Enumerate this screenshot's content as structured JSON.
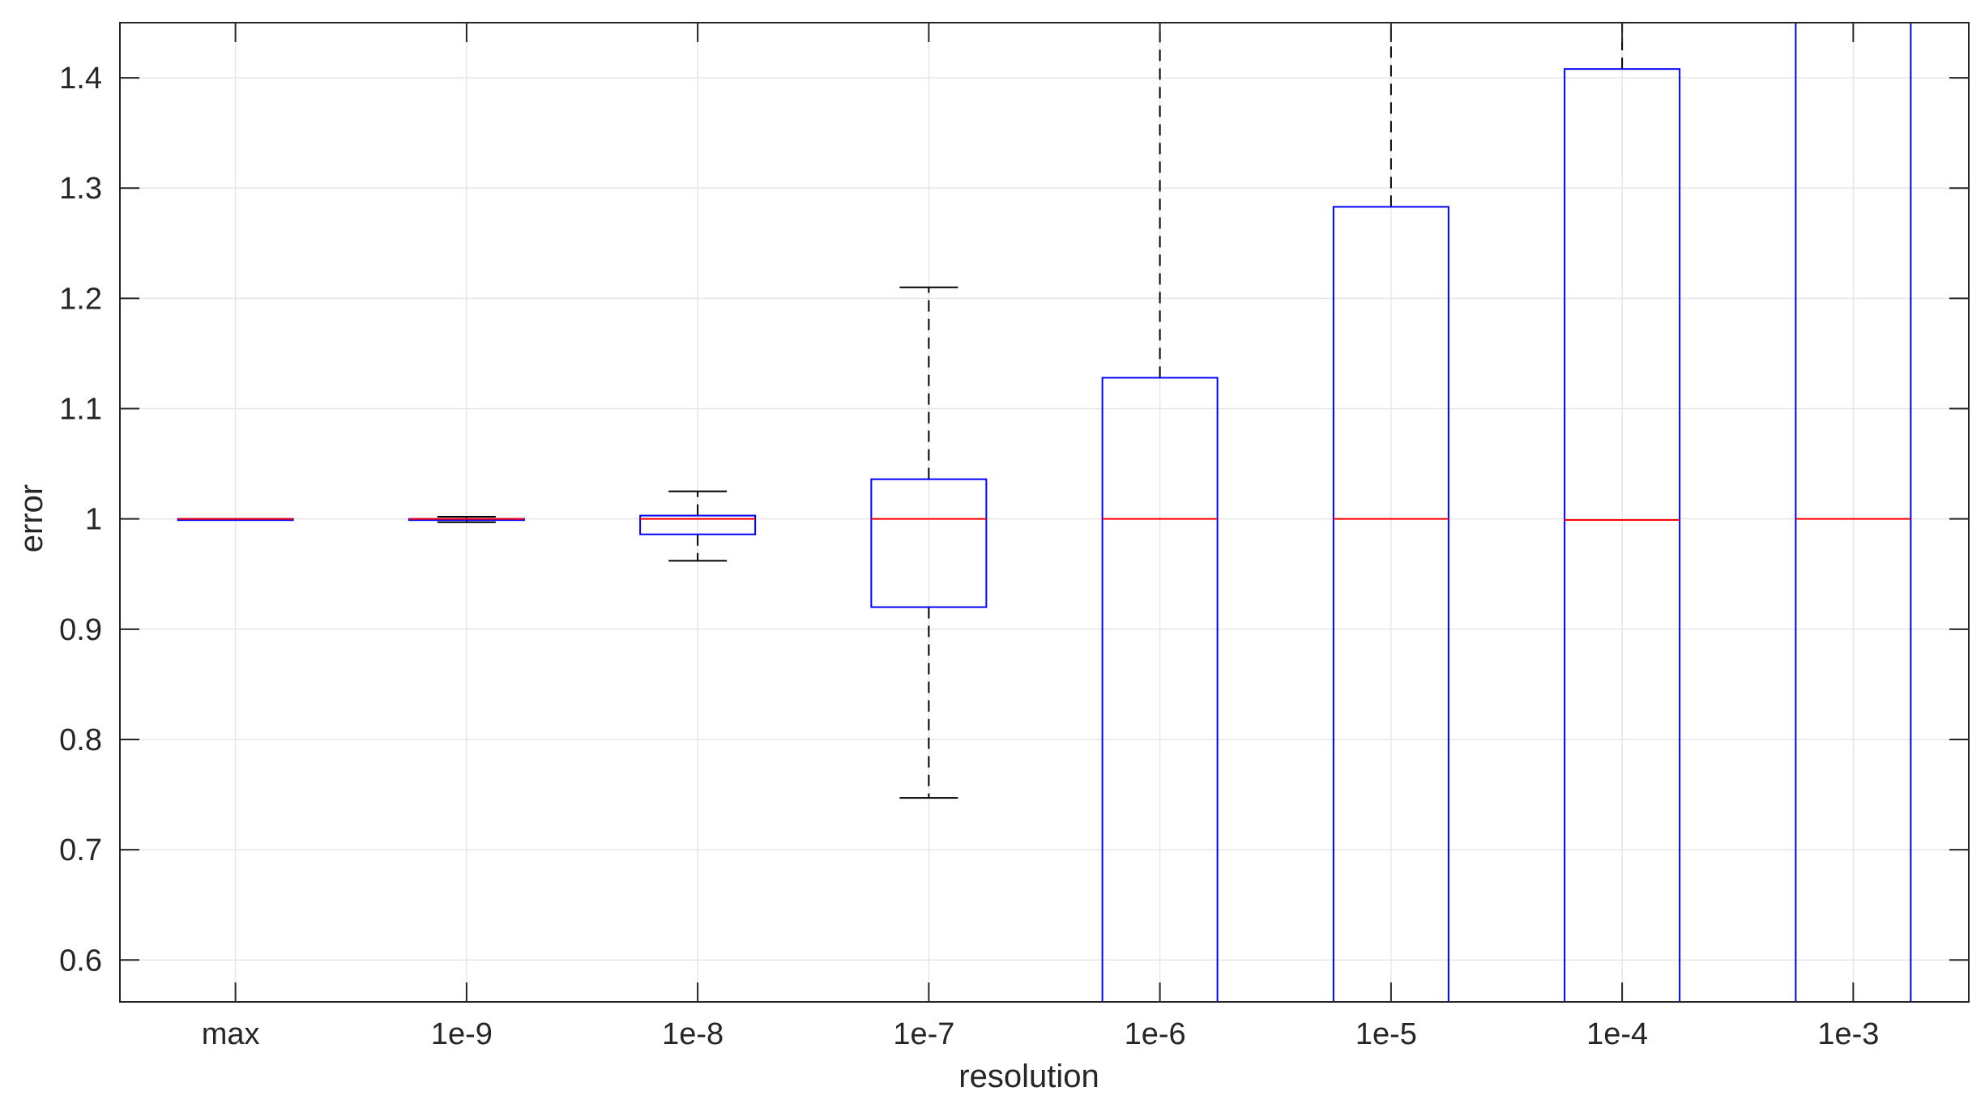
{
  "chart_data": {
    "type": "box",
    "xlabel": "resolution",
    "ylabel": "error",
    "ylim": [
      0.562,
      1.45
    ],
    "yticks": [
      "0.6",
      "0.7",
      "0.8",
      "0.9",
      "1",
      "1.1",
      "1.2",
      "1.3",
      "1.4"
    ],
    "ytick_values": [
      0.6,
      0.7,
      0.8,
      0.9,
      1.0,
      1.1,
      1.2,
      1.3,
      1.4
    ],
    "grid": true,
    "categories": [
      "max",
      "1e-9",
      "1e-8",
      "1e-7",
      "1e-6",
      "1e-5",
      "1e-4",
      "1e-3"
    ],
    "boxes": [
      {
        "category": "max",
        "whisker_low": 1.0,
        "q1": 1.0,
        "median": 1.0,
        "q3": 1.0,
        "whisker_high": 1.0
      },
      {
        "category": "1e-9",
        "whisker_low": 0.997,
        "q1": 0.999,
        "median": 1.0,
        "q3": 1.0,
        "whisker_high": 1.002
      },
      {
        "category": "1e-8",
        "whisker_low": 0.962,
        "q1": 0.986,
        "median": 1.0,
        "q3": 1.003,
        "whisker_high": 1.025
      },
      {
        "category": "1e-7",
        "whisker_low": 0.747,
        "q1": 0.92,
        "median": 1.0,
        "q3": 1.036,
        "whisker_high": 1.21
      },
      {
        "category": "1e-6",
        "whisker_low": null,
        "q1": 0.562,
        "median": 1.0,
        "q3": 1.128,
        "whisker_high": 1.45
      },
      {
        "category": "1e-5",
        "whisker_low": null,
        "q1": 0.562,
        "median": 1.0,
        "q3": 1.283,
        "whisker_high": 1.45
      },
      {
        "category": "1e-4",
        "whisker_low": null,
        "q1": 0.562,
        "median": 0.999,
        "q3": 1.408,
        "whisker_high": 1.45
      },
      {
        "category": "1e-3",
        "whisker_low": null,
        "q1": 0.562,
        "median": 1.0,
        "q3": 1.45,
        "whisker_high": null
      }
    ],
    "colors": {
      "box": "#0000ff",
      "median": "#ff0000",
      "whisker": "#000000",
      "grid": "#e6e6e6",
      "axis": "#262626"
    }
  }
}
